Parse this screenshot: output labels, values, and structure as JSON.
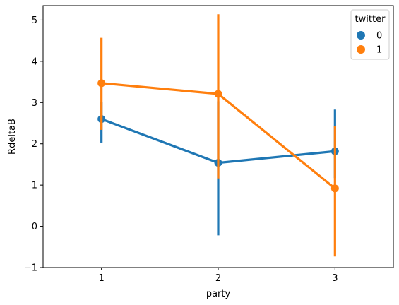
{
  "chart_data": {
    "type": "line",
    "subtype": "pointplot with confidence intervals",
    "title": "",
    "xlabel": "party",
    "ylabel": "RdeltaB",
    "categories": [
      "1",
      "2",
      "3"
    ],
    "ylim": [
      -1.0,
      5.35
    ],
    "yticks": [
      -1,
      0,
      1,
      2,
      3,
      4,
      5
    ],
    "grid": false,
    "legend": {
      "title": "twitter",
      "placement": "top-right"
    },
    "series": [
      {
        "name": "0",
        "color": "#1f77b4",
        "values": [
          2.6,
          1.54,
          1.82
        ],
        "ci_low": [
          2.03,
          -0.22,
          1.17
        ],
        "ci_high": [
          3.02,
          3.03,
          2.83
        ]
      },
      {
        "name": "1",
        "color": "#ff7f0e",
        "values": [
          3.47,
          3.21,
          0.92
        ],
        "ci_low": [
          2.34,
          1.16,
          -0.73
        ],
        "ci_high": [
          4.57,
          5.14,
          2.44
        ]
      }
    ]
  }
}
